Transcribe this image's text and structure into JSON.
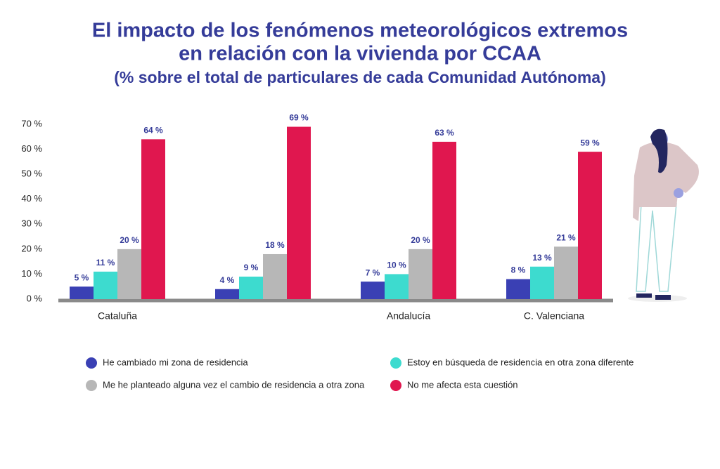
{
  "chart_data": {
    "type": "bar",
    "title": [
      "El impacto de los fenómenos meteorológicos extremos",
      "en relación con la vivienda por CCAA"
    ],
    "subtitle": "(% sobre el total de particulares de cada Comunidad Autónoma)",
    "categories": [
      "Cataluña",
      null,
      "Andalucía",
      "C. Valenciana"
    ],
    "series": [
      {
        "name": "He cambiado mi zona de residencia",
        "color": "#3a40b4",
        "values": [
          5,
          4,
          7,
          8
        ],
        "value_labels": [
          "5 %",
          "4 %",
          "7 %",
          "8 %"
        ]
      },
      {
        "name": "Estoy en búsqueda de residencia en otra zona diferente",
        "color": "#3ddbcf",
        "values": [
          11,
          9,
          10,
          13
        ],
        "value_labels": [
          "11 %",
          "9 %",
          "10 %",
          "13 %"
        ]
      },
      {
        "name": "Me he planteado alguna vez el cambio de residencia a otra zona",
        "color": "#b7b7b7",
        "values": [
          20,
          18,
          20,
          21
        ],
        "value_labels": [
          "20 %",
          "18 %",
          "20 %",
          "21 %"
        ]
      },
      {
        "name": "No me afecta esta cuestión",
        "color": "#e0174f",
        "values": [
          64,
          69,
          63,
          59
        ],
        "value_labels": [
          "64 %",
          "69 %",
          "63 %",
          "59 %"
        ]
      }
    ],
    "ylim": [
      0,
      70
    ],
    "yticks": [
      {
        "value": 0,
        "label": "0 %"
      },
      {
        "value": 10,
        "label": "10 %"
      },
      {
        "value": 20,
        "label": "20 %"
      },
      {
        "value": 30,
        "label": "30 %"
      },
      {
        "value": 40,
        "label": "40 %"
      },
      {
        "value": 50,
        "label": "50 %"
      },
      {
        "value": 60,
        "label": "60 %"
      },
      {
        "value": 70,
        "label": "70 %"
      }
    ],
    "grid": false
  }
}
